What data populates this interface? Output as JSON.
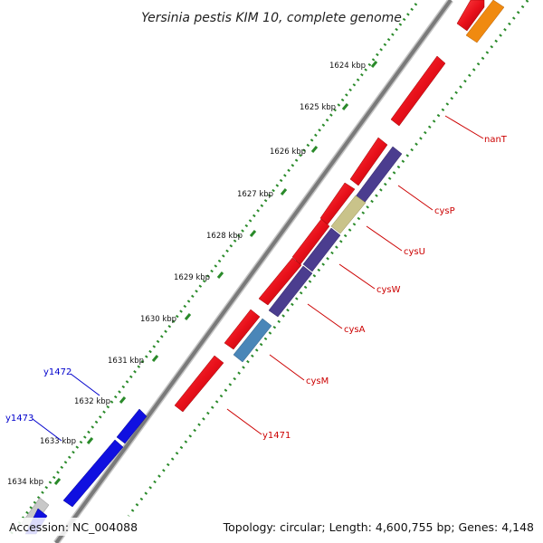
{
  "title": "Yersinia pestis KIM 10, complete genome",
  "footer": {
    "accession": "Accession: NC_004088",
    "summary": "Topology: circular; Length: 4,600,755 bp; Genes: 4,148"
  },
  "kbp_labels": [
    "1624 kbp",
    "1625 kbp",
    "1626 kbp",
    "1627 kbp",
    "1628 kbp",
    "1629 kbp",
    "1630 kbp",
    "1631 kbp",
    "1632 kbp",
    "1633 kbp",
    "1634 kbp"
  ],
  "gene_labels_right": [
    "nanT",
    "cysP",
    "cysU",
    "cysW",
    "cysA",
    "cysM",
    "y1471"
  ],
  "gene_labels_left": [
    "y1472",
    "y1473"
  ],
  "colors": {
    "forward_gene": "#e8101a",
    "cys_operon": "#4b3d8f",
    "cysU": "#c9c38a",
    "cysM": "#4a86b8",
    "y_genes": "#1010e0",
    "orange_gene": "#f08a10",
    "gc_track": "#2a8a2a",
    "backbone": "#888888",
    "right_label": "#cc0000",
    "left_label": "#0000cc"
  }
}
